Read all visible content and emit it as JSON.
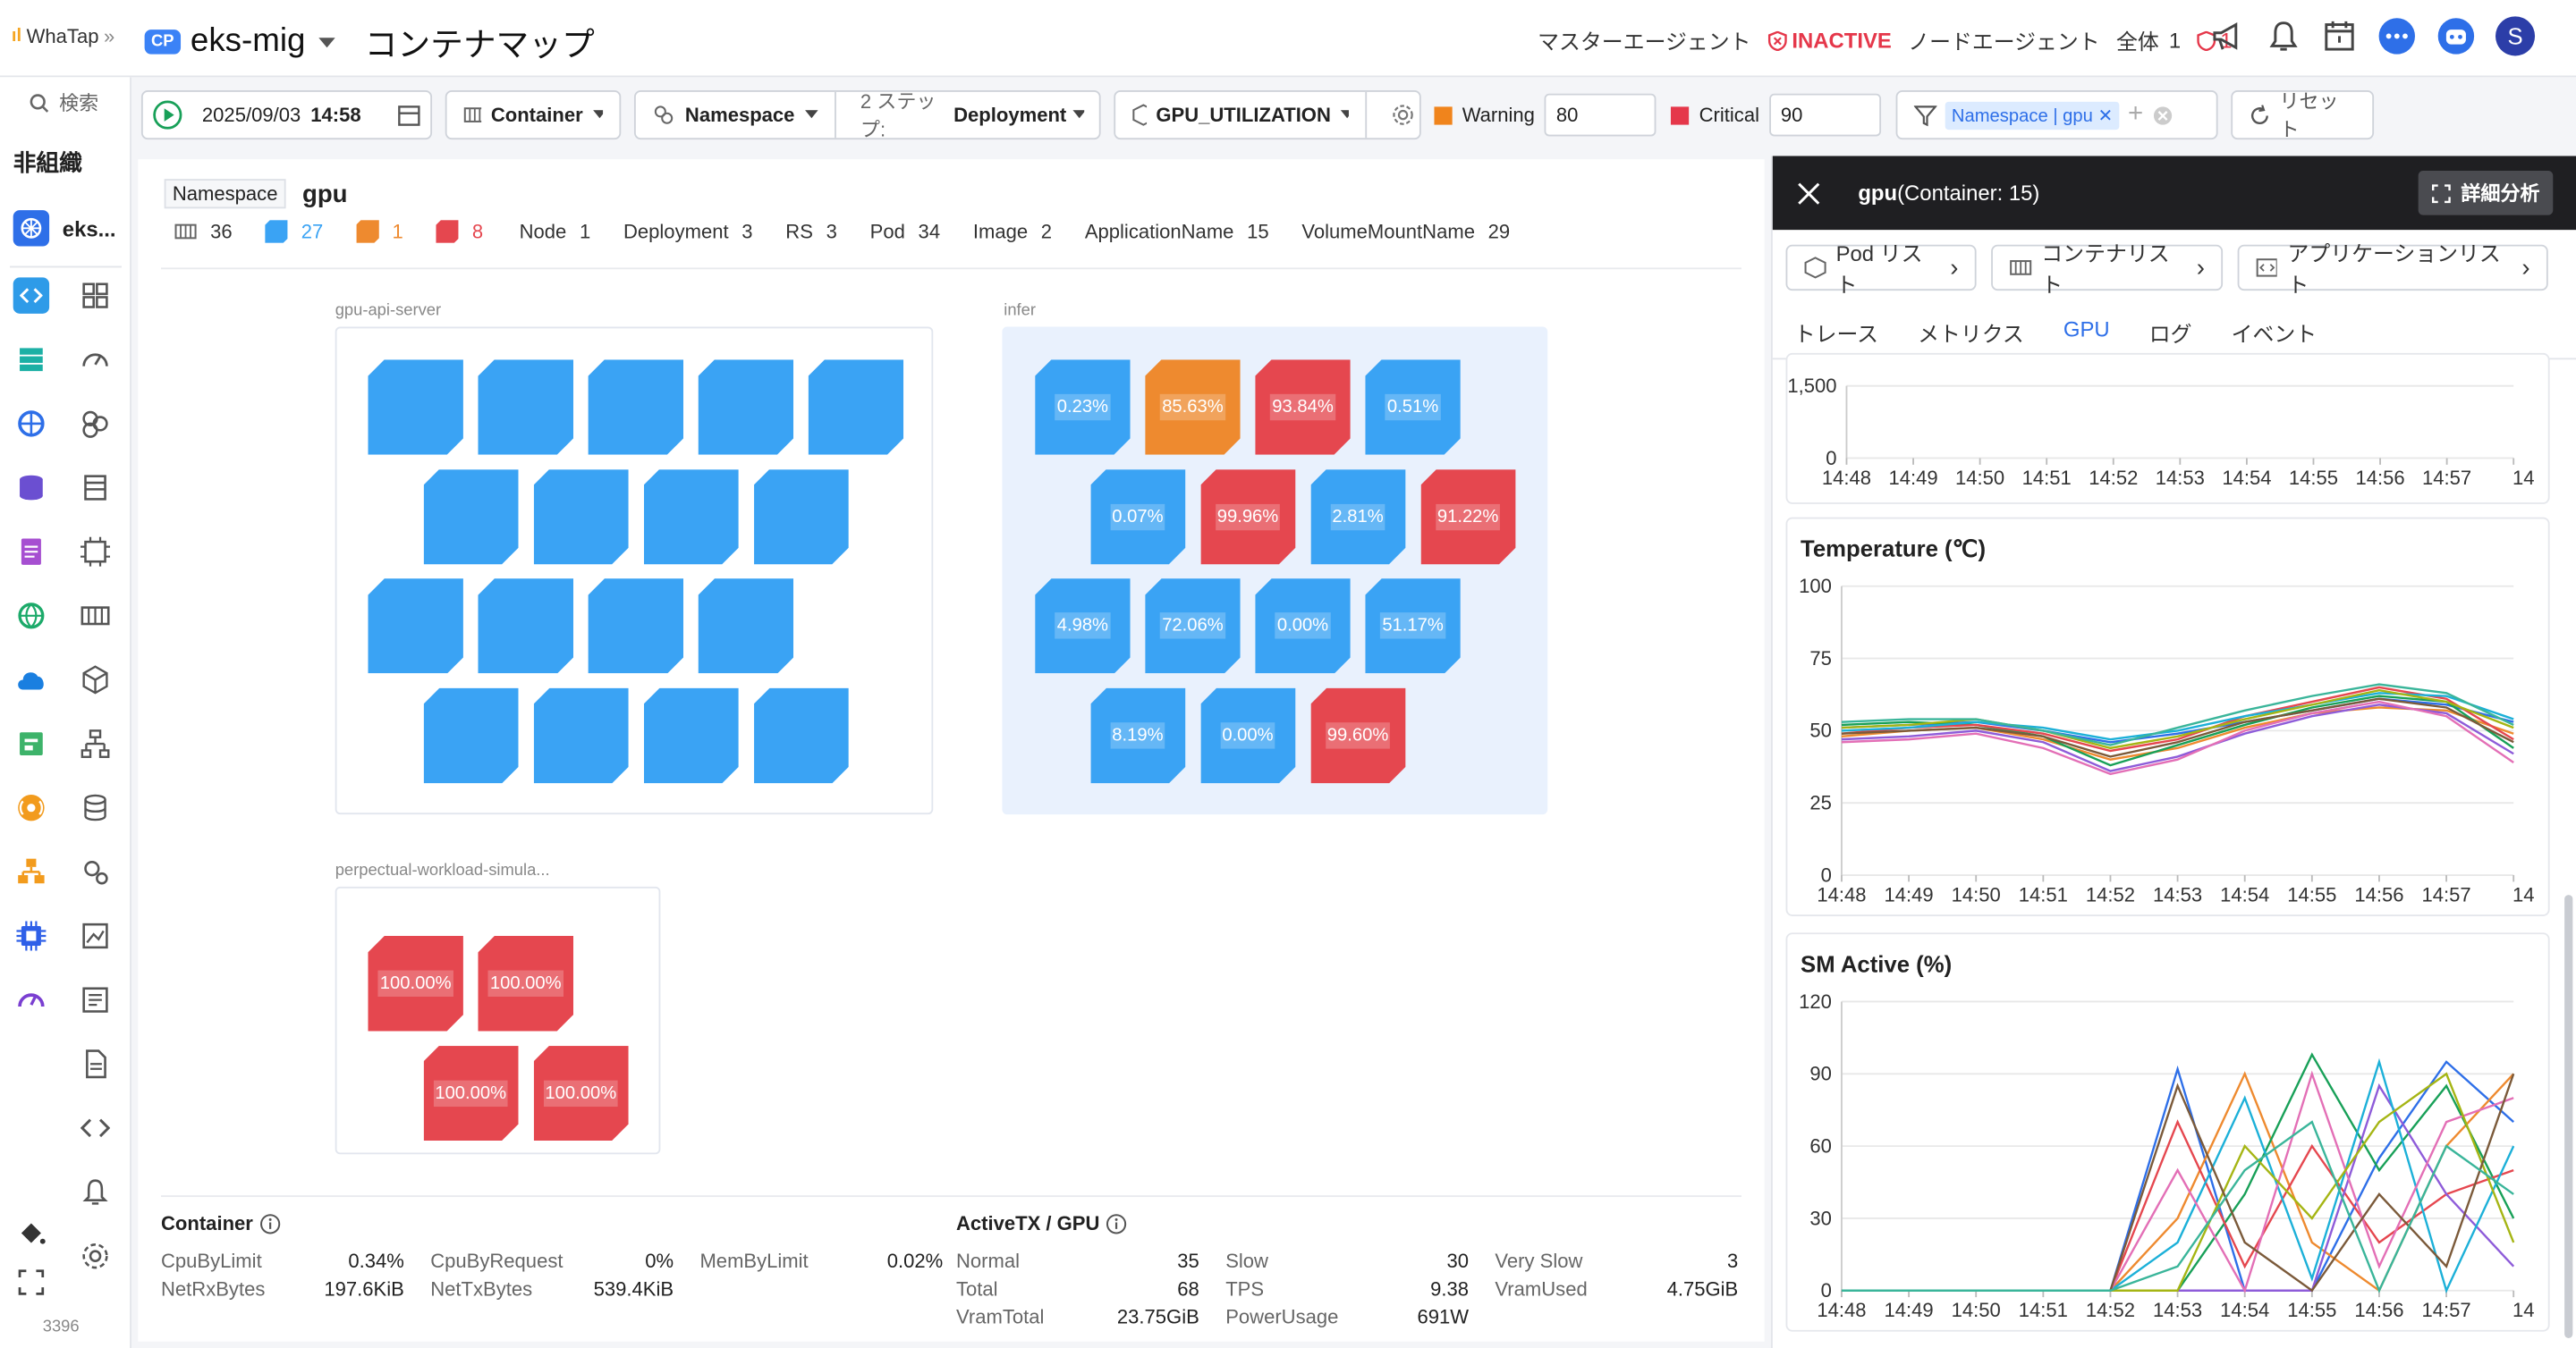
{
  "app": {
    "brand": "WhaTap",
    "project_badge": "CP",
    "project_name": "eks-mig",
    "page_title": "コンテナマップ"
  },
  "header": {
    "master_agent": "マスターエージェント",
    "inactive": "INACTIVE",
    "node_agent": "ノードエージェント",
    "total_label": "全体",
    "total_value": "1",
    "alert_count": "1",
    "avatar": "S"
  },
  "toolbar": {
    "date": "2025/09/03",
    "time": "14:58",
    "container": "Container",
    "namespace": "Namespace",
    "step_label": "2 ステップ:",
    "step_value": "Deployment",
    "metric": "GPU_UTILIZATION",
    "warning_label": "Warning",
    "warning_value": "80",
    "critical_label": "Critical",
    "critical_value": "90",
    "filter_chip": "Namespace | gpu",
    "reset": "リセット",
    "warning_color": "#f0841c",
    "critical_color": "#e5374a"
  },
  "sidebar": {
    "search": "検索",
    "org": "非組織",
    "project_short": "eks...",
    "footer_num": "3396"
  },
  "summary": {
    "ns_label": "Namespace",
    "ns_value": "gpu",
    "total": "36",
    "blue": "27",
    "orange": "1",
    "red": "8",
    "items": [
      {
        "k": "Node",
        "v": "1"
      },
      {
        "k": "Deployment",
        "v": "3"
      },
      {
        "k": "RS",
        "v": "3"
      },
      {
        "k": "Pod",
        "v": "34"
      },
      {
        "k": "Image",
        "v": "2"
      },
      {
        "k": "ApplicationName",
        "v": "15"
      },
      {
        "k": "VolumeMountName",
        "v": "29"
      }
    ]
  },
  "groups": [
    {
      "name": "gpu-api-server",
      "cells": [
        {
          "s": "blue",
          "v": ""
        },
        {
          "s": "blue",
          "v": ""
        },
        {
          "s": "blue",
          "v": ""
        },
        {
          "s": "blue",
          "v": ""
        },
        {
          "s": "blue",
          "v": ""
        },
        {
          "s": "blue",
          "v": ""
        },
        {
          "s": "blue",
          "v": ""
        },
        {
          "s": "blue",
          "v": ""
        },
        {
          "s": "blue",
          "v": ""
        },
        {
          "s": "blue",
          "v": ""
        },
        {
          "s": "blue",
          "v": ""
        },
        {
          "s": "blue",
          "v": ""
        },
        {
          "s": "blue",
          "v": ""
        },
        {
          "s": "blue",
          "v": ""
        },
        {
          "s": "blue",
          "v": ""
        },
        {
          "s": "blue",
          "v": ""
        },
        {
          "s": "blue",
          "v": ""
        }
      ]
    },
    {
      "name": "infer",
      "cells": [
        {
          "s": "blue",
          "v": "0.23%"
        },
        {
          "s": "orange",
          "v": "85.63%"
        },
        {
          "s": "red",
          "v": "93.84%"
        },
        {
          "s": "blue",
          "v": "0.51%"
        },
        {
          "s": "blue",
          "v": "0.07%"
        },
        {
          "s": "red",
          "v": "99.96%"
        },
        {
          "s": "blue",
          "v": "2.81%"
        },
        {
          "s": "red",
          "v": "91.22%"
        },
        {
          "s": "blue",
          "v": "4.98%"
        },
        {
          "s": "blue",
          "v": "72.06%"
        },
        {
          "s": "blue",
          "v": "0.00%"
        },
        {
          "s": "blue",
          "v": "51.17%"
        },
        {
          "s": "blue",
          "v": "8.19%"
        },
        {
          "s": "blue",
          "v": "0.00%"
        },
        {
          "s": "red",
          "v": "99.60%"
        }
      ]
    },
    {
      "name": "perpectual-workload-simula...",
      "cells": [
        {
          "s": "red",
          "v": "100.00%"
        },
        {
          "s": "red",
          "v": "100.00%"
        },
        {
          "s": "red",
          "v": "100.00%"
        },
        {
          "s": "red",
          "v": "100.00%"
        }
      ]
    }
  ],
  "footer": {
    "container_title": "Container",
    "container": [
      {
        "k": "CpuByLimit",
        "v": "0.34%"
      },
      {
        "k": "CpuByRequest",
        "v": "0%"
      },
      {
        "k": "MemByLimit",
        "v": "0.02%"
      },
      {
        "k": "NetRxBytes",
        "v": "197.6KiB"
      },
      {
        "k": "NetTxBytes",
        "v": "539.4KiB"
      }
    ],
    "activetx_title": "ActiveTX / GPU",
    "activetx": [
      {
        "k": "Normal",
        "v": "35"
      },
      {
        "k": "Slow",
        "v": "30"
      },
      {
        "k": "Very Slow",
        "v": "3"
      },
      {
        "k": "Total",
        "v": "68"
      },
      {
        "k": "TPS",
        "v": "9.38"
      },
      {
        "k": "VramUsed",
        "v": "4.75GiB"
      },
      {
        "k": "VramTotal",
        "v": "23.75GiB"
      },
      {
        "k": "PowerUsage",
        "v": "691W"
      }
    ]
  },
  "panel": {
    "title": "gpu",
    "title_suffix": "(Container: 15)",
    "detail": "詳細分析",
    "links": [
      "Pod リスト",
      "コンテナリスト",
      "アプリケーションリスト"
    ],
    "tabs": [
      "トレース",
      "メトリクス",
      "GPU",
      "ログ",
      "イベント"
    ],
    "active_tab": "GPU"
  },
  "chart_data": [
    {
      "type": "line",
      "title": "",
      "x": [
        "14:48",
        "14:49",
        "14:50",
        "14:51",
        "14:52",
        "14:53",
        "14:54",
        "14:55",
        "14:56",
        "14:57",
        "14"
      ],
      "yticks": [
        "1,500",
        "0"
      ],
      "series": []
    },
    {
      "type": "line",
      "title": "Temperature (℃)",
      "x": [
        "14:48",
        "14:49",
        "14:50",
        "14:51",
        "14:52",
        "14:53",
        "14:54",
        "14:55",
        "14:56",
        "14:57",
        "14"
      ],
      "ylim": [
        0,
        100
      ],
      "yticks": [
        "100",
        "75",
        "50",
        "25",
        "0"
      ],
      "series": [
        {
          "values": [
            51,
            52,
            53,
            50,
            46,
            49,
            53,
            57,
            61,
            59,
            53
          ]
        },
        {
          "values": [
            48,
            50,
            51,
            47,
            40,
            44,
            51,
            56,
            58,
            57,
            49
          ]
        },
        {
          "values": [
            52,
            53,
            52,
            48,
            38,
            45,
            52,
            58,
            62,
            60,
            44
          ]
        },
        {
          "values": [
            49,
            51,
            52,
            49,
            43,
            47,
            55,
            60,
            65,
            61,
            47
          ]
        },
        {
          "values": [
            47,
            48,
            50,
            46,
            36,
            41,
            49,
            55,
            59,
            56,
            42
          ]
        },
        {
          "values": [
            50,
            51,
            53,
            51,
            47,
            50,
            55,
            59,
            63,
            62,
            54
          ]
        },
        {
          "values": [
            46,
            47,
            49,
            44,
            35,
            40,
            50,
            56,
            60,
            55,
            39
          ]
        },
        {
          "values": [
            51,
            52,
            54,
            50,
            44,
            48,
            54,
            59,
            64,
            60,
            51
          ]
        },
        {
          "values": [
            49,
            50,
            51,
            48,
            41,
            46,
            53,
            57,
            61,
            58,
            46
          ]
        },
        {
          "values": [
            53,
            54,
            54,
            50,
            45,
            51,
            57,
            62,
            66,
            63,
            52
          ]
        }
      ]
    },
    {
      "type": "line",
      "title": "SM Active (%)",
      "x": [
        "14:48",
        "14:49",
        "14:50",
        "14:51",
        "14:52",
        "14:53",
        "14:54",
        "14:55",
        "14:56",
        "14:57",
        "14"
      ],
      "ylim": [
        0,
        120
      ],
      "yticks": [
        "120",
        "90",
        "60",
        "30",
        "0"
      ],
      "series": [
        {
          "values": [
            0,
            0,
            0,
            0,
            0,
            92,
            0,
            0,
            55,
            95,
            70
          ]
        },
        {
          "values": [
            0,
            0,
            0,
            0,
            0,
            30,
            90,
            20,
            0,
            60,
            90
          ]
        },
        {
          "values": [
            0,
            0,
            0,
            0,
            0,
            0,
            40,
            98,
            50,
            85,
            30
          ]
        },
        {
          "values": [
            0,
            0,
            0,
            0,
            0,
            70,
            10,
            60,
            20,
            40,
            50
          ]
        },
        {
          "values": [
            0,
            0,
            0,
            0,
            0,
            0,
            0,
            0,
            85,
            40,
            10
          ]
        },
        {
          "values": [
            0,
            0,
            0,
            0,
            0,
            20,
            80,
            5,
            95,
            0,
            60
          ]
        },
        {
          "values": [
            0,
            0,
            0,
            0,
            0,
            50,
            0,
            90,
            10,
            70,
            80
          ]
        },
        {
          "values": [
            0,
            0,
            0,
            0,
            0,
            0,
            60,
            30,
            70,
            90,
            20
          ]
        },
        {
          "values": [
            0,
            0,
            0,
            0,
            0,
            85,
            20,
            0,
            40,
            10,
            90
          ]
        },
        {
          "values": [
            0,
            0,
            0,
            0,
            0,
            10,
            50,
            70,
            0,
            60,
            40
          ]
        }
      ]
    }
  ]
}
